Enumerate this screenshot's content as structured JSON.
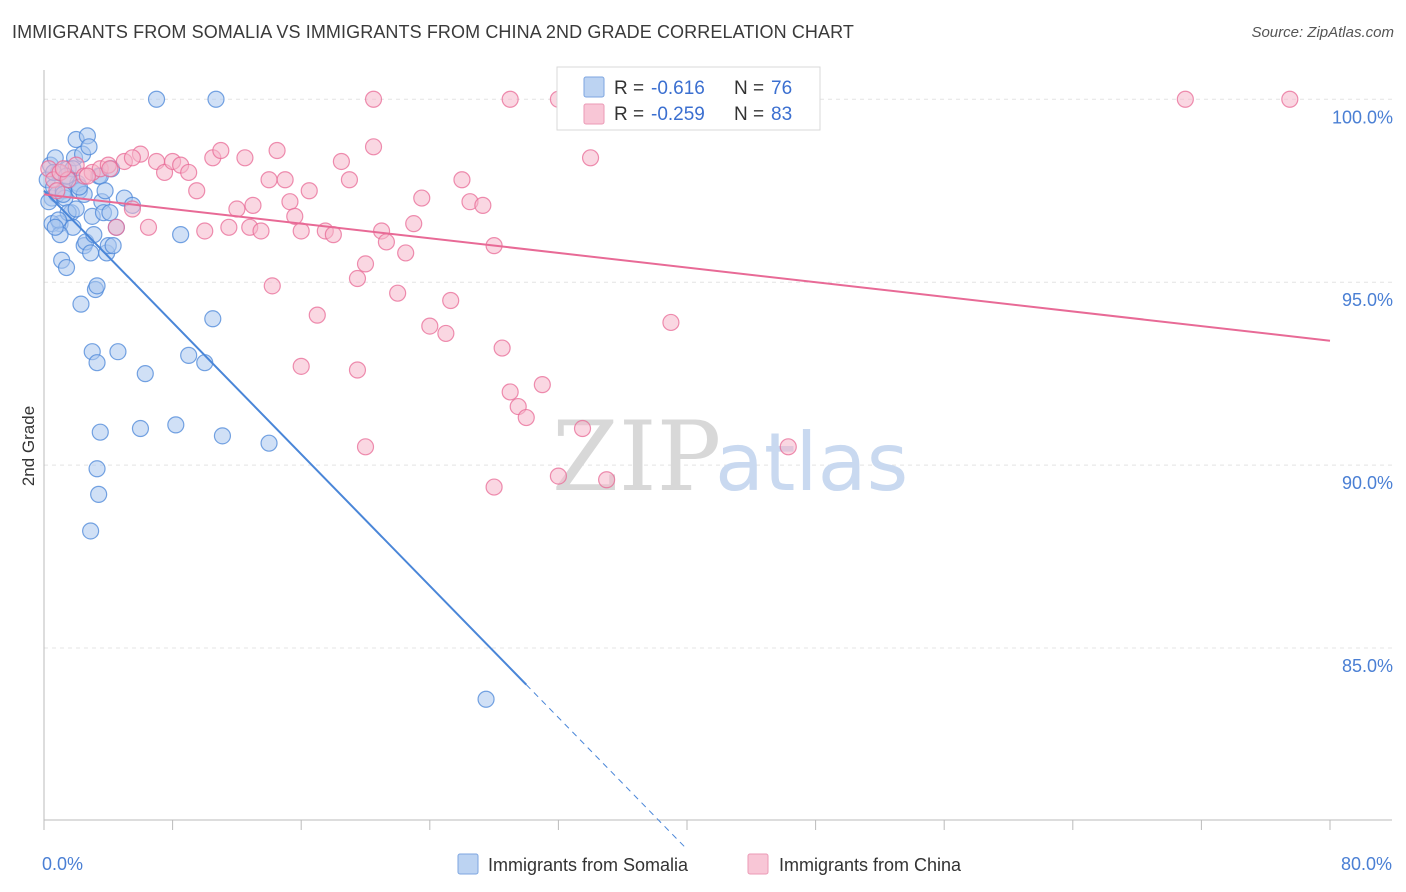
{
  "title": "IMMIGRANTS FROM SOMALIA VS IMMIGRANTS FROM CHINA 2ND GRADE CORRELATION CHART",
  "source": "Source: ZipAtlas.com",
  "watermark": {
    "zip": "ZIP",
    "atlas": "atlas"
  },
  "colors": {
    "somalia": "#4a86d8",
    "china": "#e86a96",
    "somalia_fill": "#aac6ee",
    "china_fill": "#f5b7cb",
    "grid": "#e4e4e4",
    "tick": "#4a7fd4"
  },
  "legend_box": {
    "rows": [
      {
        "r_label": "R =",
        "r_value": "-0.616",
        "n_label": "N =",
        "n_value": "76"
      },
      {
        "r_label": "R =",
        "r_value": "-0.259",
        "n_label": "N =",
        "n_value": "83"
      }
    ]
  },
  "bottom_legend": [
    {
      "label": "Immigrants from Somalia"
    },
    {
      "label": "Immigrants from China"
    }
  ],
  "chart_data": {
    "type": "scatter",
    "title": "IMMIGRANTS FROM SOMALIA VS IMMIGRANTS FROM CHINA 2ND GRADE CORRELATION CHART",
    "xlabel": "",
    "ylabel": "2nd Grade",
    "xlim": [
      0,
      80
    ],
    "ylim": [
      80.3,
      100.8
    ],
    "x_tick_labels": [
      {
        "value": 0,
        "label": "0.0%"
      },
      {
        "value": 80,
        "label": "80.0%"
      }
    ],
    "y_tick_labels": [
      {
        "value": 100,
        "label": "100.0%"
      },
      {
        "value": 95,
        "label": "95.0%"
      },
      {
        "value": 90,
        "label": "90.0%"
      },
      {
        "value": 85,
        "label": "85.0%"
      }
    ],
    "x_minor_ticks": [
      0,
      8,
      16,
      24,
      32,
      40,
      48,
      56,
      64,
      72,
      80
    ],
    "series": [
      {
        "name": "Immigrants from Somalia",
        "R": -0.616,
        "N": 76,
        "trend": {
          "x0": 0,
          "y0": 97.5,
          "x1": 30,
          "y1": 84.0,
          "dash_to_x": 40
        },
        "points": [
          [
            0.2,
            97.8
          ],
          [
            0.4,
            98.2
          ],
          [
            0.5,
            97.3
          ],
          [
            0.6,
            97.6
          ],
          [
            0.7,
            98.4
          ],
          [
            0.8,
            97.4
          ],
          [
            0.9,
            98.0
          ],
          [
            1.0,
            96.6
          ],
          [
            1.1,
            95.6
          ],
          [
            1.2,
            97.5
          ],
          [
            1.3,
            97.3
          ],
          [
            1.4,
            95.4
          ],
          [
            1.5,
            98.1
          ],
          [
            1.6,
            97.8
          ],
          [
            1.7,
            96.9
          ],
          [
            1.8,
            96.5
          ],
          [
            1.9,
            98.4
          ],
          [
            2.0,
            98.9
          ],
          [
            2.1,
            97.7
          ],
          [
            2.2,
            97.5
          ],
          [
            2.3,
            94.4
          ],
          [
            2.4,
            98.5
          ],
          [
            2.5,
            96.0
          ],
          [
            2.6,
            96.1
          ],
          [
            2.7,
            99.0
          ],
          [
            2.8,
            98.7
          ],
          [
            2.9,
            95.8
          ],
          [
            3.0,
            96.8
          ],
          [
            3.1,
            96.3
          ],
          [
            3.2,
            94.8
          ],
          [
            3.3,
            94.9
          ],
          [
            3.4,
            97.9
          ],
          [
            3.5,
            97.9
          ],
          [
            3.6,
            97.2
          ],
          [
            3.7,
            96.9
          ],
          [
            3.8,
            97.5
          ],
          [
            3.9,
            95.8
          ],
          [
            4.0,
            96.0
          ],
          [
            4.1,
            96.9
          ],
          [
            4.2,
            98.1
          ],
          [
            4.5,
            96.5
          ],
          [
            5.0,
            97.3
          ],
          [
            5.5,
            97.1
          ],
          [
            0.3,
            97.2
          ],
          [
            0.5,
            96.6
          ],
          [
            1.0,
            96.3
          ],
          [
            1.5,
            96.9
          ],
          [
            2.0,
            97.0
          ],
          [
            2.5,
            97.4
          ],
          [
            3.0,
            93.1
          ],
          [
            3.3,
            92.8
          ],
          [
            3.4,
            89.2
          ],
          [
            3.3,
            89.9
          ],
          [
            3.5,
            90.9
          ],
          [
            4.6,
            93.1
          ],
          [
            6.3,
            92.5
          ],
          [
            6.0,
            91.0
          ],
          [
            8.2,
            91.1
          ],
          [
            9.0,
            93.0
          ],
          [
            10.0,
            92.8
          ],
          [
            10.5,
            94.0
          ],
          [
            11.1,
            90.8
          ],
          [
            14.0,
            90.6
          ],
          [
            8.5,
            96.3
          ],
          [
            7.0,
            100.0
          ],
          [
            10.7,
            100.0
          ],
          [
            2.9,
            88.2
          ],
          [
            27.5,
            83.6
          ],
          [
            0.6,
            98.0
          ],
          [
            1.2,
            97.4
          ],
          [
            1.8,
            98.1
          ],
          [
            2.2,
            97.6
          ],
          [
            0.9,
            96.7
          ],
          [
            4.3,
            96.0
          ],
          [
            1.4,
            97.9
          ],
          [
            0.7,
            96.5
          ]
        ]
      },
      {
        "name": "Immigrants from China",
        "R": -0.259,
        "N": 83,
        "trend": {
          "x0": 0,
          "y0": 97.4,
          "x1": 80,
          "y1": 93.4
        },
        "points": [
          [
            0.3,
            98.1
          ],
          [
            0.6,
            97.8
          ],
          [
            1.0,
            98.0
          ],
          [
            1.5,
            97.8
          ],
          [
            2.0,
            98.2
          ],
          [
            2.5,
            97.9
          ],
          [
            3.0,
            98.0
          ],
          [
            3.5,
            98.1
          ],
          [
            4.0,
            98.2
          ],
          [
            4.5,
            96.5
          ],
          [
            5.0,
            98.3
          ],
          [
            5.5,
            97.0
          ],
          [
            6.0,
            98.5
          ],
          [
            6.5,
            96.5
          ],
          [
            7.0,
            98.3
          ],
          [
            7.5,
            98.0
          ],
          [
            8.0,
            98.3
          ],
          [
            8.5,
            98.2
          ],
          [
            9.0,
            98.0
          ],
          [
            9.5,
            97.5
          ],
          [
            10.0,
            96.4
          ],
          [
            10.5,
            98.4
          ],
          [
            11.0,
            98.6
          ],
          [
            11.5,
            96.5
          ],
          [
            12.0,
            97.0
          ],
          [
            12.5,
            98.4
          ],
          [
            12.8,
            96.5
          ],
          [
            13.0,
            97.1
          ],
          [
            13.5,
            96.4
          ],
          [
            14.0,
            97.8
          ],
          [
            14.5,
            98.6
          ],
          [
            15.0,
            97.8
          ],
          [
            15.3,
            97.2
          ],
          [
            15.6,
            96.8
          ],
          [
            16.0,
            96.4
          ],
          [
            16.5,
            97.5
          ],
          [
            17.0,
            94.1
          ],
          [
            17.5,
            96.4
          ],
          [
            18.0,
            96.3
          ],
          [
            18.5,
            98.3
          ],
          [
            19.0,
            97.8
          ],
          [
            19.5,
            95.1
          ],
          [
            20.0,
            95.5
          ],
          [
            20.5,
            98.7
          ],
          [
            21.0,
            96.4
          ],
          [
            21.3,
            96.1
          ],
          [
            22.0,
            94.7
          ],
          [
            22.5,
            95.8
          ],
          [
            23.0,
            96.6
          ],
          [
            23.5,
            97.3
          ],
          [
            24.0,
            93.8
          ],
          [
            25.0,
            93.6
          ],
          [
            25.3,
            94.5
          ],
          [
            26.0,
            97.8
          ],
          [
            26.5,
            97.2
          ],
          [
            27.3,
            97.1
          ],
          [
            28.0,
            96.0
          ],
          [
            28.5,
            93.2
          ],
          [
            29.0,
            92.0
          ],
          [
            29.5,
            91.6
          ],
          [
            30.0,
            91.3
          ],
          [
            31.0,
            92.2
          ],
          [
            32.0,
            89.7
          ],
          [
            33.5,
            91.0
          ],
          [
            34.0,
            98.4
          ],
          [
            35.0,
            89.6
          ],
          [
            39.0,
            93.9
          ],
          [
            46.3,
            90.5
          ],
          [
            28.0,
            89.4
          ],
          [
            20.0,
            90.5
          ],
          [
            16.0,
            92.7
          ],
          [
            19.5,
            92.6
          ],
          [
            14.2,
            94.9
          ],
          [
            20.5,
            100.0
          ],
          [
            29.0,
            100.0
          ],
          [
            32.0,
            100.0
          ],
          [
            71.0,
            100.0
          ],
          [
            77.5,
            100.0
          ],
          [
            1.2,
            98.1
          ],
          [
            2.7,
            97.9
          ],
          [
            4.1,
            98.1
          ],
          [
            5.5,
            98.4
          ],
          [
            0.8,
            97.5
          ]
        ]
      }
    ]
  }
}
